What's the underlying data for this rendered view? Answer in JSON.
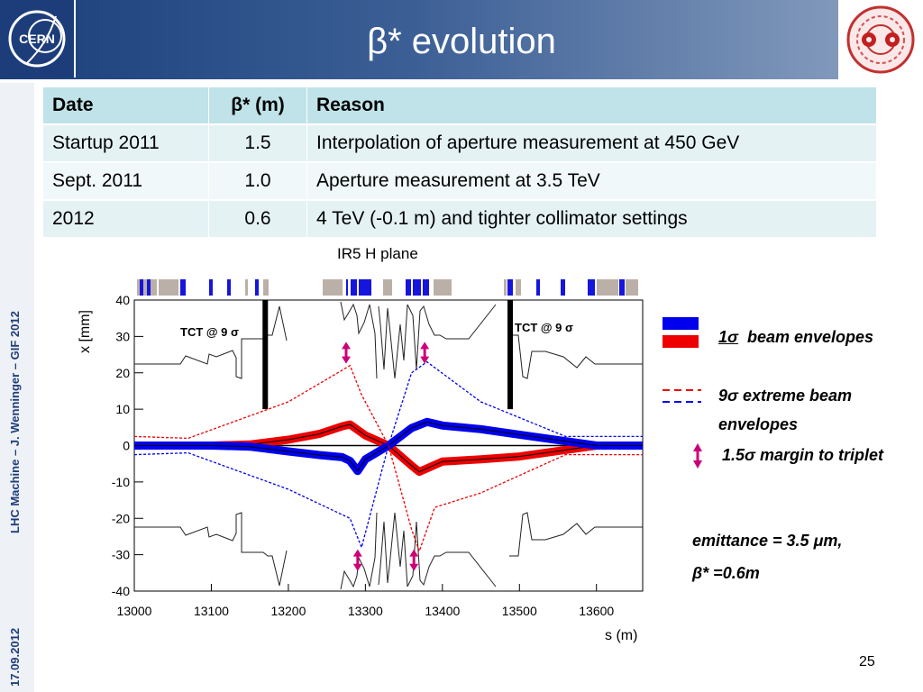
{
  "header": {
    "title": "β* evolution",
    "left_logo_text": "CERN"
  },
  "sidebar": {
    "footer_text": "LHC Machine  –  J. Wenninger – GIF 2012",
    "date": "17.09.2012"
  },
  "table": {
    "headers": [
      "Date",
      "β* (m)",
      "Reason"
    ],
    "rows": [
      [
        "Startup 2011",
        "1.5",
        "Interpolation of aperture measurement at 450 GeV"
      ],
      [
        "Sept. 2011",
        "1.0",
        "Aperture measurement at 3.5 TeV"
      ],
      [
        "2012",
        "0.6",
        "4 TeV (-0.1 m) and tighter collimator settings"
      ]
    ]
  },
  "plot": {
    "title": "IR5 H plane",
    "tct_left": "TCT @ 9 σ",
    "tct_right": "TCT @ 9 σ"
  },
  "legend": {
    "beam_envelopes": "1σ  beam envelopes",
    "extreme_line1": "9σ  extreme beam",
    "extreme_line2": "envelopes",
    "margin": "1.5σ margin to triplet",
    "emittance": "emittance = 3.5 μm,",
    "beta": "β* =0.6m"
  },
  "footer": {
    "page_number": "25"
  },
  "colors": {
    "beam1": "#0000ee",
    "beam2": "#ee0000",
    "arrow": "#cc0077",
    "header_dark": "#1a3f7a",
    "table_header": "#bfe3e8"
  },
  "chart_data": {
    "type": "line",
    "xlabel": "s (m)",
    "ylabel": "x [mm]",
    "xlim": [
      13000,
      13660
    ],
    "ylim": [
      -40,
      40
    ],
    "xticks": [
      "13000",
      "13100",
      "13200",
      "13300",
      "13400",
      "13500",
      "13600"
    ],
    "yticks": [
      "40",
      "30",
      "20",
      "10",
      "0",
      "-10",
      "-20",
      "-30",
      "-40"
    ],
    "series": [
      {
        "kind": "envelope_red",
        "x": [
          13000,
          13100,
          13150,
          13200,
          13240,
          13270,
          13280,
          13300,
          13330,
          13360,
          13370,
          13400,
          13450,
          13500,
          13550,
          13600,
          13660
        ],
        "y": [
          0,
          0,
          0.3,
          1.6,
          3.2,
          5.3,
          5.8,
          2.8,
          0,
          -5.5,
          -7.2,
          -4.4,
          -3.8,
          -3.0,
          -1.5,
          0,
          0
        ]
      },
      {
        "kind": "envelope_blue",
        "x": [
          13000,
          13100,
          13150,
          13200,
          13240,
          13270,
          13280,
          13290,
          13300,
          13330,
          13360,
          13380,
          13400,
          13450,
          13500,
          13550,
          13600,
          13660
        ],
        "y": [
          0,
          0,
          -0.3,
          -1.6,
          -2.6,
          -3.2,
          -4.2,
          -7.0,
          -3.8,
          0,
          4.8,
          6.5,
          5.5,
          4.5,
          3.0,
          1.5,
          0,
          0
        ]
      },
      {
        "kind": "extreme_red",
        "x": [
          13000,
          13070,
          13200,
          13280,
          13295,
          13330,
          13360,
          13370,
          13390,
          13450,
          13560,
          13660
        ],
        "y": [
          2.5,
          2.0,
          12.0,
          22.0,
          14.0,
          0,
          -23.0,
          -29.0,
          -17.0,
          -13.0,
          -2.5,
          -2.5
        ]
      },
      {
        "kind": "extreme_blue",
        "x": [
          13000,
          13070,
          13200,
          13280,
          13295,
          13330,
          13360,
          13380,
          13450,
          13560,
          13660
        ],
        "y": [
          -2.5,
          -2.0,
          -12.0,
          -20.0,
          -28.0,
          0,
          20.0,
          23.0,
          12.0,
          2.5,
          2.5
        ]
      }
    ],
    "margin_arrows": [
      {
        "x": 13275,
        "y": [
          22.5,
          28.5
        ]
      },
      {
        "x": 13377,
        "y": [
          22.5,
          28.5
        ]
      },
      {
        "x": 13290,
        "y": [
          -28.5,
          -34.5
        ]
      },
      {
        "x": 13363,
        "y": [
          -28.5,
          -34.5
        ]
      }
    ],
    "tct": [
      {
        "x": 13170,
        "y": [
          10,
          40
        ]
      },
      {
        "x": 13488,
        "y": [
          10,
          40
        ]
      }
    ]
  }
}
